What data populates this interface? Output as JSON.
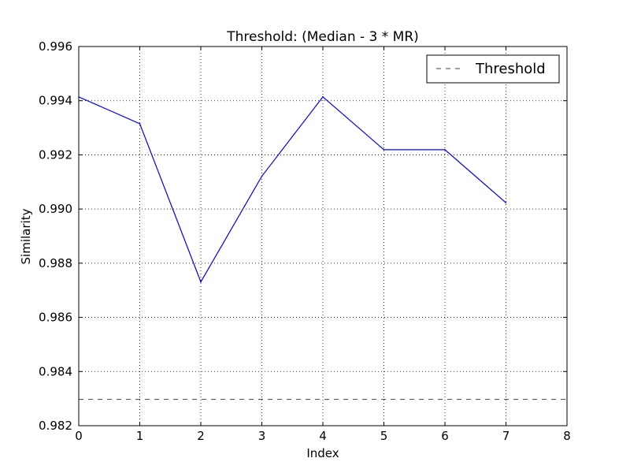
{
  "chart_data": {
    "type": "line",
    "title": "Threshold: (Median - 3 * MR)",
    "xlabel": "Index",
    "ylabel": "Similarity",
    "xlim": [
      0,
      8
    ],
    "ylim": [
      0.982,
      0.996
    ],
    "xticks": [
      0,
      1,
      2,
      3,
      4,
      5,
      6,
      7,
      8
    ],
    "xtick_labels": [
      "0",
      "1",
      "2",
      "3",
      "4",
      "5",
      "6",
      "7",
      "8"
    ],
    "yticks": [
      0.982,
      0.984,
      0.986,
      0.988,
      0.99,
      0.992,
      0.994,
      0.996
    ],
    "ytick_labels": [
      "0.982",
      "0.984",
      "0.986",
      "0.988",
      "0.990",
      "0.992",
      "0.994",
      "0.996"
    ],
    "grid": true,
    "legend_position": "top-right",
    "series": [
      {
        "x": [
          0,
          1,
          2,
          3,
          4,
          5,
          6,
          7
        ],
        "y": [
          0.99414,
          0.99315,
          0.98731,
          0.99121,
          0.99414,
          0.99219,
          0.99219,
          0.99023
        ],
        "color": "#0000ff",
        "style": "solid"
      }
    ],
    "threshold": {
      "name": "Threshold",
      "y": 0.98297,
      "color": "#404040",
      "style": "dashed"
    }
  }
}
